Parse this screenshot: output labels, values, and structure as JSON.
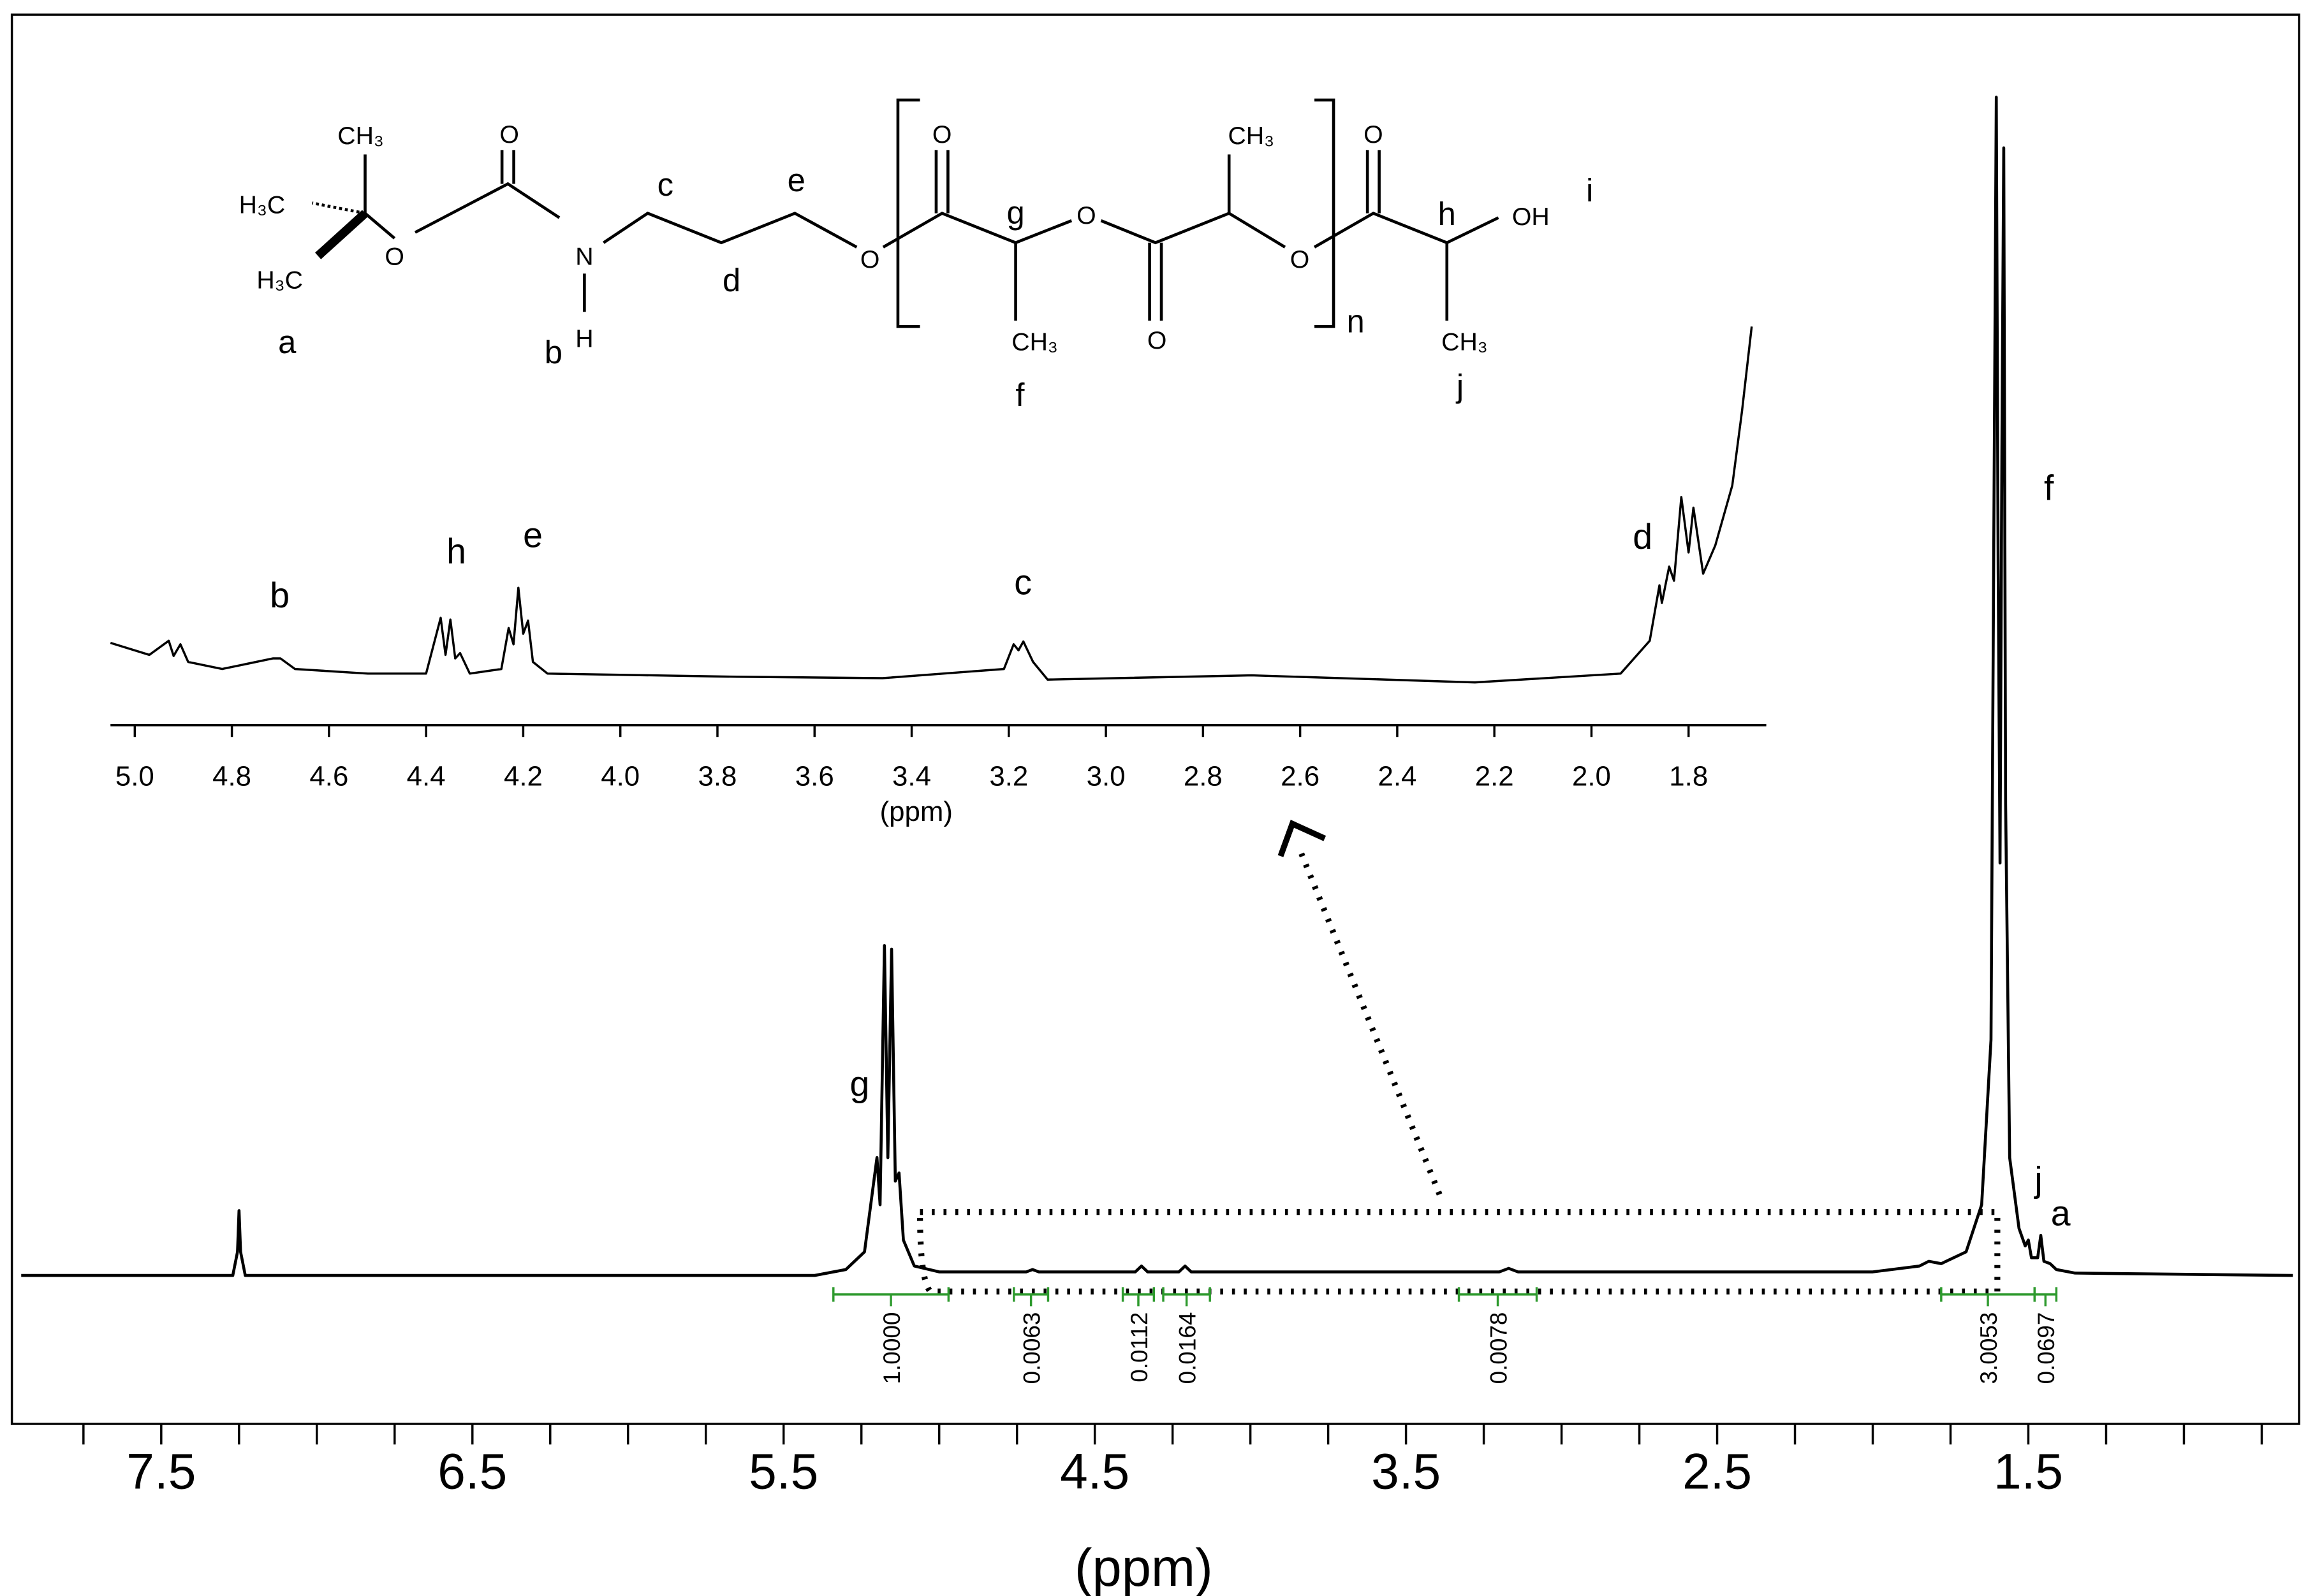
{
  "chart_data": [
    {
      "type": "line",
      "xlabel": "(ppm)",
      "xlim": [
        7.98,
        0.63
      ],
      "ylim": [
        -12.6,
        107
      ],
      "xticks": [
        7.5,
        6.5,
        5.5,
        4.5,
        3.5,
        2.5,
        1.5
      ],
      "xminorticks": [
        7.75,
        7.25,
        7,
        6.75,
        6.25,
        6,
        5.75,
        5.25,
        5,
        4.75,
        4.25,
        4,
        3.75,
        3.25,
        3,
        2.75,
        2.25,
        2,
        1.75,
        1.25,
        1,
        0.75
      ],
      "series": [
        {
          "color": "#000000",
          "x": [
            7.95,
            7.27,
            7.255,
            7.25,
            7.245,
            7.23,
            5.4,
            5.3,
            5.24,
            5.2,
            5.19,
            5.176,
            5.165,
            5.153,
            5.141,
            5.129,
            5.115,
            5.08,
            5.0,
            4.72,
            4.7,
            4.68,
            4.37,
            4.35,
            4.33,
            4.23,
            4.21,
            4.19,
            3.2,
            3.17,
            3.14,
            2.0,
            1.85,
            1.82,
            1.78,
            1.7,
            1.65,
            1.62,
            1.603,
            1.597,
            1.591,
            1.585,
            1.579,
            1.573,
            1.56,
            1.53,
            1.51,
            1.5,
            1.49,
            1.47,
            1.46,
            1.45,
            1.43,
            1.41,
            1.35,
            0.65
          ],
          "values": [
            0,
            0,
            2,
            5.5,
            2,
            0,
            0,
            0.5,
            2,
            10,
            6,
            28,
            10,
            27.7,
            8,
            8.7,
            3,
            0.8,
            0.3,
            0.3,
            0.5,
            0.3,
            0.3,
            0.8,
            0.3,
            0.3,
            0.8,
            0.3,
            0.3,
            0.6,
            0.3,
            0.3,
            0.8,
            1.2,
            1,
            2,
            6,
            20,
            100,
            60,
            35,
            70,
            95.7,
            40,
            10,
            4,
            2.5,
            3,
            1.5,
            1.5,
            3.4,
            1.2,
            1,
            0.5,
            0.2,
            0
          ]
        }
      ],
      "integrals": [
        {
          "range": [
            5.34,
            4.97
          ],
          "value": 1,
          "label": "1.0000"
        },
        {
          "range": [
            4.76,
            4.65
          ],
          "value": 0.0063,
          "label": "0.0063"
        },
        {
          "range": [
            4.41,
            4.31
          ],
          "value": 0.0112,
          "label": "0.0112"
        },
        {
          "range": [
            4.28,
            4.13
          ],
          "value": 0.0164,
          "label": "0.0164"
        },
        {
          "range": [
            3.33,
            3.08
          ],
          "value": 0.0078,
          "label": "0.0078"
        },
        {
          "range": [
            1.78,
            1.48
          ],
          "value": 3.0053,
          "label": "3.0053"
        },
        {
          "range": [
            1.48,
            1.41
          ],
          "value": 0.0697,
          "label": "0.0697"
        }
      ],
      "peak_labels": [
        "g",
        "f",
        "j",
        "a"
      ]
    },
    {
      "type": "line",
      "xlabel": "(ppm)",
      "xlim": [
        5.05,
        1.64
      ],
      "ylim": [
        0,
        100
      ],
      "xticks": [
        {
          "value": 5,
          "label": "5.0"
        },
        {
          "value": 4.8,
          "label": "4.8"
        },
        {
          "value": 4.6,
          "label": "4.6"
        },
        {
          "value": 4.4,
          "label": "4.4"
        },
        {
          "value": 4.2,
          "label": "4.2"
        },
        {
          "value": 4,
          "label": "4.0"
        },
        {
          "value": 3.8,
          "label": "3.8"
        },
        {
          "value": 3.6,
          "label": "3.6"
        },
        {
          "value": 3.4,
          "label": "3.4"
        },
        {
          "value": 3.2,
          "label": "3.2"
        },
        {
          "value": 3,
          "label": "3.0"
        },
        {
          "value": 2.8,
          "label": "2.8"
        },
        {
          "value": 2.6,
          "label": "2.6"
        },
        {
          "value": 2.4,
          "label": "2.4"
        },
        {
          "value": 2.2,
          "label": "2.2"
        },
        {
          "value": 2,
          "label": "2.0"
        },
        {
          "value": 1.8,
          "label": "1.8"
        }
      ],
      "series": [
        {
          "color": "#000000",
          "x": [
            5.05,
            4.97,
            4.93,
            4.92,
            4.906,
            4.89,
            4.82,
            4.715,
            4.7,
            4.67,
            4.52,
            4.4,
            4.37,
            4.36,
            4.35,
            4.34,
            4.33,
            4.31,
            4.245,
            4.23,
            4.22,
            4.21,
            4.2,
            4.19,
            4.18,
            4.15,
            3.76,
            3.46,
            3.21,
            3.19,
            3.18,
            3.17,
            3.15,
            3.12,
            2.7,
            2.24,
            1.94,
            1.88,
            1.86,
            1.855,
            1.84,
            1.83,
            1.815,
            1.8,
            1.79,
            1.77,
            1.745,
            1.71,
            1.69,
            1.67
          ],
          "values": [
            10.4,
            7,
            11,
            6.7,
            10,
            5,
            3,
            6,
            6,
            3,
            1.7,
            1.7,
            17.5,
            7,
            17,
            6,
            7.5,
            1.7,
            3,
            14.6,
            10,
            26,
            13,
            16.7,
            5,
            1.7,
            0.8,
            0.4,
            3,
            10,
            8.3,
            10.8,
            5,
            0,
            1.2,
            -0.8,
            1.7,
            11,
            26.7,
            21.7,
            32,
            28,
            51.7,
            36,
            48.7,
            30,
            38,
            55,
            76,
            100
          ]
        }
      ],
      "peak_labels": [
        "b",
        "h",
        "e",
        "c",
        "d"
      ]
    }
  ],
  "structure": {
    "texts": [
      "CH₃",
      "H₃C",
      "H₃C",
      "a",
      "O",
      "O",
      "N",
      "H",
      "b",
      "c",
      "d",
      "e",
      "O",
      "O",
      "g",
      "O",
      "CH₃",
      "f",
      "O",
      "CH₃",
      "O",
      "n",
      "O",
      "h",
      "OH",
      "i",
      "CH₃",
      "j"
    ]
  }
}
